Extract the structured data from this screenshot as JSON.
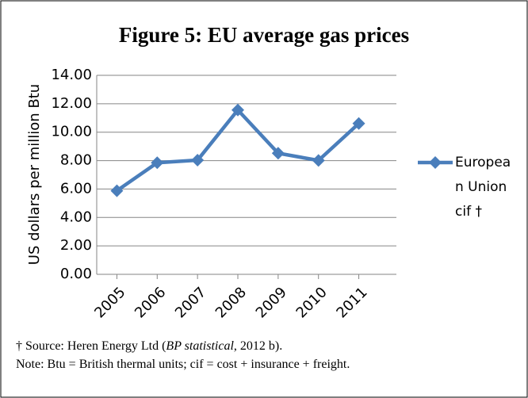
{
  "chart_data": {
    "type": "line",
    "title": "Figure 5: EU average gas prices",
    "y_label": "US dollars per million Btu",
    "categories": [
      "2005",
      "2006",
      "2007",
      "2008",
      "2009",
      "2010",
      "2011"
    ],
    "series": [
      {
        "name": "European Union cif †",
        "color": "#4a7ebb",
        "values": [
          5.88,
          7.85,
          8.03,
          11.56,
          8.52,
          8.01,
          10.61
        ]
      }
    ],
    "ylim": [
      0,
      14
    ],
    "yticks": [
      {
        "value": 0,
        "label": "0.00"
      },
      {
        "value": 2,
        "label": "2.00"
      },
      {
        "value": 4,
        "label": "4.00"
      },
      {
        "value": 6,
        "label": "6.00"
      },
      {
        "value": 8,
        "label": "8.00"
      },
      {
        "value": 10,
        "label": "10.00"
      },
      {
        "value": 12,
        "label": "12.00"
      },
      {
        "value": 14,
        "label": "14.00"
      }
    ],
    "grid": true,
    "legend": "right"
  },
  "footnotes": {
    "source_prefix": "† Source: Heren Energy Ltd (",
    "source_italic": "BP statistical",
    "source_suffix": ", 2012 b).",
    "note": "Note: Btu = British thermal units; cif = cost + insurance + freight."
  }
}
